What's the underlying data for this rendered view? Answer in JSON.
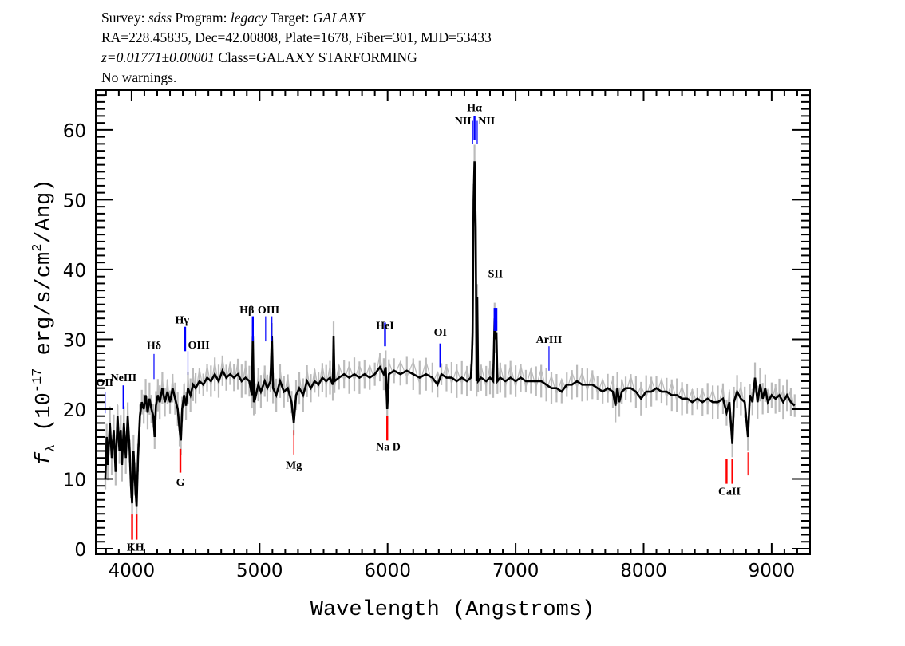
{
  "header": {
    "survey_label": "Survey:",
    "survey": "sdss",
    "program_label": "Program:",
    "program": "legacy",
    "target_label": "Target:",
    "target": "GALAXY",
    "line2": "RA=228.45835, Dec=42.00808, Plate=1678, Fiber=301, MJD=53433",
    "redshift": "z=0.01771±0.00001",
    "class": "Class=GALAXY STARFORMING",
    "warnings": "No warnings."
  },
  "chart_data": {
    "type": "line",
    "xlabel": "Wavelength (Angstroms)",
    "ylabel": "fλ (10⁻¹⁷ erg/s/cm²/Ang)",
    "xlim": [
      3720,
      9300
    ],
    "ylim": [
      -0.8,
      65.7
    ],
    "x_ticks": [
      4000,
      5000,
      6000,
      7000,
      8000,
      9000
    ],
    "y_ticks": [
      0,
      10,
      20,
      30,
      40,
      50,
      60
    ],
    "grid": false,
    "colors": {
      "flux": "#000000",
      "error": "#bbbbbb",
      "emission": "#0000ff",
      "absorption": "#ff0000"
    },
    "flux_error": 1.5,
    "spectrum": [
      [
        3795,
        10
      ],
      [
        3805,
        16
      ],
      [
        3815,
        12
      ],
      [
        3830,
        18
      ],
      [
        3845,
        13
      ],
      [
        3860,
        17
      ],
      [
        3875,
        11
      ],
      [
        3890,
        19
      ],
      [
        3905,
        14
      ],
      [
        3915,
        17
      ],
      [
        3925,
        12
      ],
      [
        3940,
        18
      ],
      [
        3955,
        13
      ],
      [
        3970,
        19
      ],
      [
        3985,
        14
      ],
      [
        3995,
        9
      ],
      [
        4004,
        6.5
      ],
      [
        4015,
        14
      ],
      [
        4025,
        10
      ],
      [
        4039,
        6
      ],
      [
        4050,
        13
      ],
      [
        4065,
        19
      ],
      [
        4080,
        21
      ],
      [
        4095,
        20
      ],
      [
        4110,
        22
      ],
      [
        4125,
        19.5
      ],
      [
        4140,
        21.5
      ],
      [
        4155,
        20
      ],
      [
        4170,
        19
      ],
      [
        4180,
        16
      ],
      [
        4190,
        20.5
      ],
      [
        4205,
        22
      ],
      [
        4220,
        21
      ],
      [
        4240,
        23
      ],
      [
        4260,
        21
      ],
      [
        4280,
        22.5
      ],
      [
        4300,
        21
      ],
      [
        4320,
        23
      ],
      [
        4340,
        21.5
      ],
      [
        4360,
        20
      ],
      [
        4375,
        17
      ],
      [
        4385,
        15.5
      ],
      [
        4395,
        20
      ],
      [
        4410,
        22
      ],
      [
        4425,
        20.5
      ],
      [
        4440,
        23
      ],
      [
        4460,
        22
      ],
      [
        4480,
        23.5
      ],
      [
        4500,
        23
      ],
      [
        4530,
        24
      ],
      [
        4560,
        23.5
      ],
      [
        4590,
        24.5
      ],
      [
        4620,
        24
      ],
      [
        4650,
        25
      ],
      [
        4680,
        24
      ],
      [
        4710,
        25.5
      ],
      [
        4740,
        24.5
      ],
      [
        4770,
        25
      ],
      [
        4800,
        24.5
      ],
      [
        4830,
        25
      ],
      [
        4860,
        24
      ],
      [
        4890,
        24.5
      ],
      [
        4920,
        24
      ],
      [
        4940,
        22
      ],
      [
        4947,
        30.5
      ],
      [
        4955,
        21
      ],
      [
        4965,
        21.5
      ],
      [
        4990,
        23.5
      ],
      [
        5010,
        22.5
      ],
      [
        5040,
        24
      ],
      [
        5060,
        23
      ],
      [
        5085,
        24
      ],
      [
        5096,
        30.5
      ],
      [
        5105,
        23
      ],
      [
        5130,
        22
      ],
      [
        5160,
        24
      ],
      [
        5190,
        22.5
      ],
      [
        5220,
        23
      ],
      [
        5250,
        21
      ],
      [
        5267,
        18
      ],
      [
        5285,
        22
      ],
      [
        5310,
        23
      ],
      [
        5340,
        22
      ],
      [
        5370,
        24
      ],
      [
        5400,
        23
      ],
      [
        5430,
        24
      ],
      [
        5460,
        23.5
      ],
      [
        5490,
        24.5
      ],
      [
        5520,
        24
      ],
      [
        5550,
        24.5
      ],
      [
        5572,
        23.5
      ],
      [
        5578,
        30.5
      ],
      [
        5585,
        24
      ],
      [
        5620,
        24.5
      ],
      [
        5660,
        25
      ],
      [
        5700,
        24.5
      ],
      [
        5740,
        25
      ],
      [
        5780,
        24.5
      ],
      [
        5820,
        25
      ],
      [
        5860,
        24.5
      ],
      [
        5900,
        25
      ],
      [
        5940,
        26
      ],
      [
        5970,
        25
      ],
      [
        5985,
        26
      ],
      [
        5997,
        20
      ],
      [
        6010,
        25
      ],
      [
        6050,
        25.5
      ],
      [
        6100,
        25
      ],
      [
        6150,
        25.5
      ],
      [
        6200,
        25
      ],
      [
        6250,
        24.5
      ],
      [
        6300,
        25
      ],
      [
        6350,
        24.5
      ],
      [
        6390,
        23.5
      ],
      [
        6420,
        25
      ],
      [
        6460,
        24.5
      ],
      [
        6500,
        24.5
      ],
      [
        6540,
        24
      ],
      [
        6580,
        24.5
      ],
      [
        6620,
        24
      ],
      [
        6650,
        24.5
      ],
      [
        6658,
        27
      ],
      [
        6664,
        31
      ],
      [
        6672,
        50
      ],
      [
        6679,
        55.5
      ],
      [
        6688,
        46
      ],
      [
        6695,
        24
      ],
      [
        6700,
        36
      ],
      [
        6707,
        24
      ],
      [
        6730,
        24.5
      ],
      [
        6770,
        24
      ],
      [
        6800,
        24.5
      ],
      [
        6825,
        24
      ],
      [
        6836,
        33
      ],
      [
        6845,
        30
      ],
      [
        6850,
        31
      ],
      [
        6858,
        24
      ],
      [
        6880,
        24.5
      ],
      [
        6920,
        24
      ],
      [
        6960,
        24.5
      ],
      [
        7000,
        24
      ],
      [
        7040,
        24.5
      ],
      [
        7080,
        24
      ],
      [
        7120,
        24
      ],
      [
        7160,
        24
      ],
      [
        7200,
        24
      ],
      [
        7240,
        23.5
      ],
      [
        7280,
        23
      ],
      [
        7320,
        23
      ],
      [
        7360,
        22.5
      ],
      [
        7400,
        23.5
      ],
      [
        7440,
        23.5
      ],
      [
        7480,
        24
      ],
      [
        7520,
        23.5
      ],
      [
        7560,
        23.5
      ],
      [
        7600,
        23.5
      ],
      [
        7640,
        23
      ],
      [
        7680,
        22.5
      ],
      [
        7720,
        23
      ],
      [
        7760,
        22.5
      ],
      [
        7780,
        20.5
      ],
      [
        7795,
        23
      ],
      [
        7810,
        21
      ],
      [
        7830,
        22.5
      ],
      [
        7860,
        23
      ],
      [
        7900,
        23
      ],
      [
        7940,
        22.5
      ],
      [
        7980,
        21.5
      ],
      [
        8020,
        22.5
      ],
      [
        8060,
        22.5
      ],
      [
        8100,
        23
      ],
      [
        8140,
        22.5
      ],
      [
        8180,
        22.5
      ],
      [
        8220,
        22
      ],
      [
        8260,
        22
      ],
      [
        8300,
        21.5
      ],
      [
        8340,
        21.5
      ],
      [
        8380,
        21
      ],
      [
        8420,
        21.5
      ],
      [
        8460,
        21
      ],
      [
        8500,
        21.5
      ],
      [
        8540,
        21
      ],
      [
        8580,
        21
      ],
      [
        8620,
        21.5
      ],
      [
        8648,
        19.5
      ],
      [
        8670,
        21
      ],
      [
        8693,
        15
      ],
      [
        8705,
        21
      ],
      [
        8730,
        22.5
      ],
      [
        8760,
        21.5
      ],
      [
        8790,
        21
      ],
      [
        8815,
        16
      ],
      [
        8830,
        22
      ],
      [
        8850,
        21
      ],
      [
        8870,
        24.5
      ],
      [
        8890,
        21
      ],
      [
        8910,
        23.5
      ],
      [
        8930,
        21.5
      ],
      [
        8950,
        23
      ],
      [
        8970,
        21
      ],
      [
        9000,
        22
      ],
      [
        9030,
        21.5
      ],
      [
        9060,
        22
      ],
      [
        9090,
        21
      ],
      [
        9120,
        22
      ],
      [
        9150,
        21
      ],
      [
        9180,
        20.5
      ]
    ],
    "line_markers": [
      {
        "wavelength": 3793,
        "y": [
          19.4,
          22.5
        ],
        "color": "#0000ff",
        "strong": false
      },
      {
        "wavelength": 3937,
        "y": [
          20,
          23.4
        ],
        "color": "#0000ff",
        "strong": true
      },
      {
        "wavelength": 4004,
        "y": [
          1.3,
          4.9
        ],
        "color": "#ff0000",
        "strong": true
      },
      {
        "wavelength": 4039,
        "y": [
          1.3,
          4.9
        ],
        "color": "#ff0000",
        "strong": true
      },
      {
        "wavelength": 4175,
        "y": [
          24.3,
          27.9
        ],
        "color": "#0000ff",
        "strong": false
      },
      {
        "wavelength": 4381,
        "y": [
          10.9,
          14.3
        ],
        "color": "#ff0000",
        "strong": true
      },
      {
        "wavelength": 4418,
        "y": [
          28.3,
          31.8
        ],
        "color": "#0000ff",
        "strong": true
      },
      {
        "wavelength": 4440,
        "y": [
          24.9,
          28.3
        ],
        "color": "#0000ff",
        "strong": false
      },
      {
        "wavelength": 4947,
        "y": [
          29.7,
          33.3
        ],
        "color": "#0000ff",
        "strong": true
      },
      {
        "wavelength": 5047,
        "y": [
          29.7,
          33.3
        ],
        "color": "#0000ff",
        "strong": false
      },
      {
        "wavelength": 5096,
        "y": [
          29.7,
          33.3
        ],
        "color": "#0000ff",
        "strong": false
      },
      {
        "wavelength": 5267,
        "y": [
          13.5,
          17
        ],
        "color": "#ff0000",
        "strong": false
      },
      {
        "wavelength": 5980,
        "y": [
          29,
          32.4
        ],
        "color": "#0000ff",
        "strong": true
      },
      {
        "wavelength": 5997,
        "y": [
          15.5,
          19
        ],
        "color": "#ff0000",
        "strong": true
      },
      {
        "wavelength": 6412,
        "y": [
          26,
          29.4
        ],
        "color": "#0000ff",
        "strong": true
      },
      {
        "wavelength": 6664,
        "y": [
          58,
          61.3
        ],
        "color": "#0000ff",
        "strong": false
      },
      {
        "wavelength": 6679,
        "y": [
          58.5,
          62
        ],
        "color": "#0000ff",
        "strong": true
      },
      {
        "wavelength": 6700,
        "y": [
          58,
          61.3
        ],
        "color": "#0000ff",
        "strong": false
      },
      {
        "wavelength": 6836,
        "y": [
          31.2,
          34.5
        ],
        "color": "#0000ff",
        "strong": true
      },
      {
        "wavelength": 6850,
        "y": [
          31.2,
          34.5
        ],
        "color": "#0000ff",
        "strong": true
      },
      {
        "wavelength": 7261,
        "y": [
          25.5,
          29
        ],
        "color": "#0000ff",
        "strong": false
      },
      {
        "wavelength": 8648,
        "y": [
          9.3,
          12.8
        ],
        "color": "#ff0000",
        "strong": true
      },
      {
        "wavelength": 8693,
        "y": [
          9.3,
          12.8
        ],
        "color": "#ff0000",
        "strong": true
      },
      {
        "wavelength": 8815,
        "y": [
          10.5,
          13.8
        ],
        "color": "#ff0000",
        "strong": false
      }
    ],
    "line_labels": [
      {
        "text": "OII",
        "wavelength": 3790,
        "y": 23.3,
        "align": "center"
      },
      {
        "text": "NeIII",
        "wavelength": 3937,
        "y": 24.0,
        "align": "center"
      },
      {
        "text": "KH",
        "wavelength": 4030,
        "y": -0.3,
        "align": "center"
      },
      {
        "text": "Hδ",
        "wavelength": 4175,
        "y": 28.6,
        "align": "center"
      },
      {
        "text": "G",
        "wavelength": 4381,
        "y": 9.0,
        "align": "center"
      },
      {
        "text": "Hγ",
        "wavelength": 4395,
        "y": 32.3,
        "align": "center"
      },
      {
        "text": "OIII",
        "wavelength": 4440,
        "y": 28.7,
        "align": "left"
      },
      {
        "text": "Hβ",
        "wavelength": 4900,
        "y": 33.7,
        "align": "center"
      },
      {
        "text": "OIII",
        "wavelength": 5070,
        "y": 33.7,
        "align": "center"
      },
      {
        "text": "Mg",
        "wavelength": 5267,
        "y": 11.5,
        "align": "center"
      },
      {
        "text": "HeI",
        "wavelength": 5980,
        "y": 31.5,
        "align": "center"
      },
      {
        "text": "Na D",
        "wavelength": 6005,
        "y": 14.1,
        "align": "center"
      },
      {
        "text": "OI",
        "wavelength": 6412,
        "y": 30.5,
        "align": "center"
      },
      {
        "text": "Hα",
        "wavelength": 6679,
        "y": 62.7,
        "align": "center"
      },
      {
        "text": "NII",
        "wavelength": 6655,
        "y": 60.8,
        "align": "right"
      },
      {
        "text": "NII",
        "wavelength": 6708,
        "y": 60.8,
        "align": "left"
      },
      {
        "text": "SII",
        "wavelength": 6843,
        "y": 38.9,
        "align": "center"
      },
      {
        "text": "ArIII",
        "wavelength": 7261,
        "y": 29.5,
        "align": "center"
      },
      {
        "text": "CaII",
        "wavelength": 8670,
        "y": 7.7,
        "align": "center"
      }
    ]
  }
}
